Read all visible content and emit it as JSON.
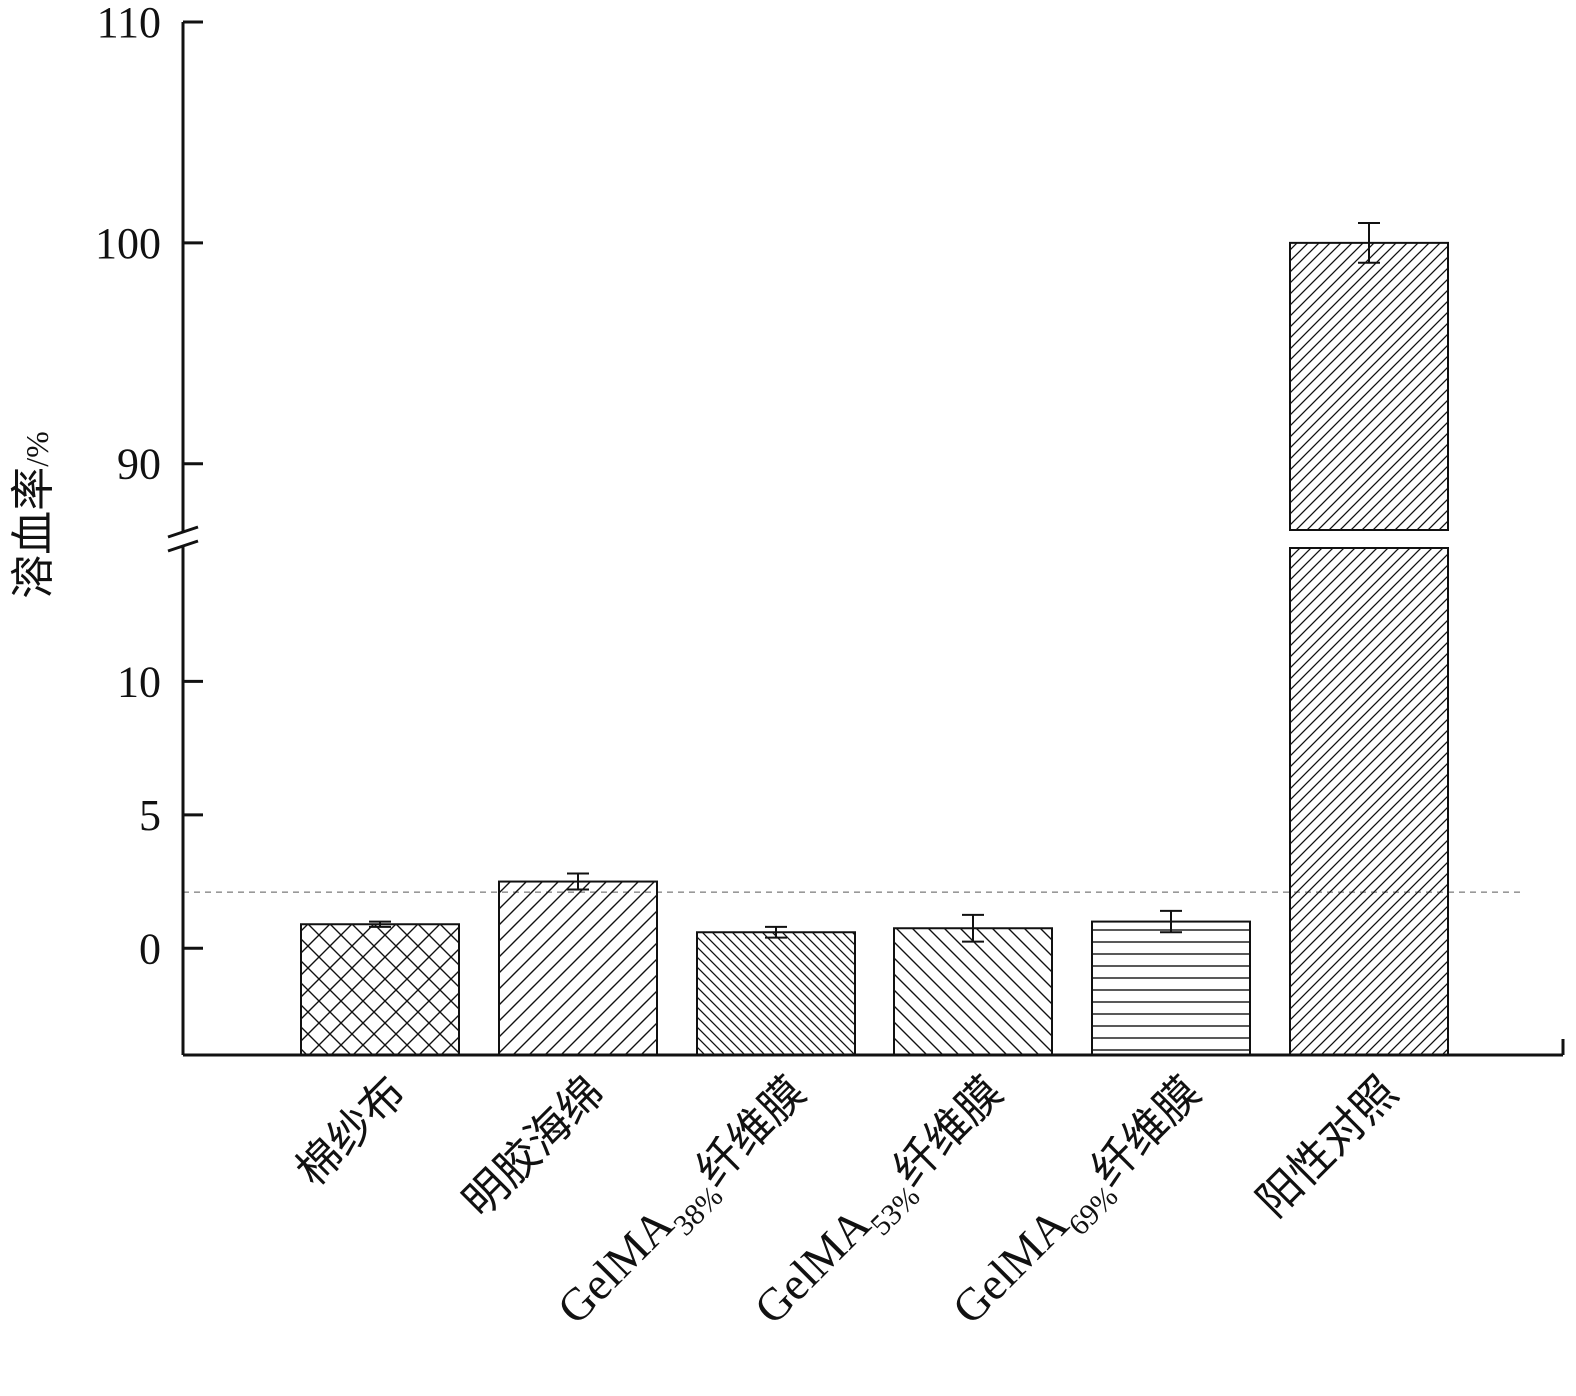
{
  "chart_data": {
    "type": "bar",
    "title": "",
    "xlabel": "",
    "ylabel": "溶血率/%",
    "ylabel_parts": {
      "main": "溶血率",
      "unit": "/%"
    },
    "y_axis": {
      "broken": true,
      "lower_segment": {
        "range": [
          -4,
          15
        ],
        "ticks": [
          0,
          5,
          10
        ]
      },
      "upper_segment": {
        "range": [
          87,
          110
        ],
        "ticks": [
          90,
          100,
          110
        ]
      }
    },
    "grid": false,
    "reference_line": {
      "value": 2.1,
      "style": "dashed",
      "color": "#999999"
    },
    "categories": [
      {
        "main": "棉纱布",
        "sub": "",
        "suffix": ""
      },
      {
        "main": "明胶海绵",
        "sub": "",
        "suffix": ""
      },
      {
        "main": "GelMA",
        "sub": "38%",
        "suffix": "纤维膜"
      },
      {
        "main": "GelMA",
        "sub": "53%",
        "suffix": "纤维膜"
      },
      {
        "main": "GelMA",
        "sub": "69%",
        "suffix": "纤维膜"
      },
      {
        "main": "阳性对照",
        "sub": "",
        "suffix": ""
      }
    ],
    "values": [
      0.9,
      2.5,
      0.6,
      0.75,
      1.0,
      100
    ],
    "errors": [
      0.1,
      0.3,
      0.2,
      0.5,
      0.4,
      0.9
    ],
    "patterns": [
      "crosshatch",
      "diag-up",
      "diag-down-dense",
      "diag-down",
      "horizontal",
      "diag-up-dense"
    ],
    "colors": {
      "stroke": "#111111",
      "fill": "#ffffff"
    }
  }
}
